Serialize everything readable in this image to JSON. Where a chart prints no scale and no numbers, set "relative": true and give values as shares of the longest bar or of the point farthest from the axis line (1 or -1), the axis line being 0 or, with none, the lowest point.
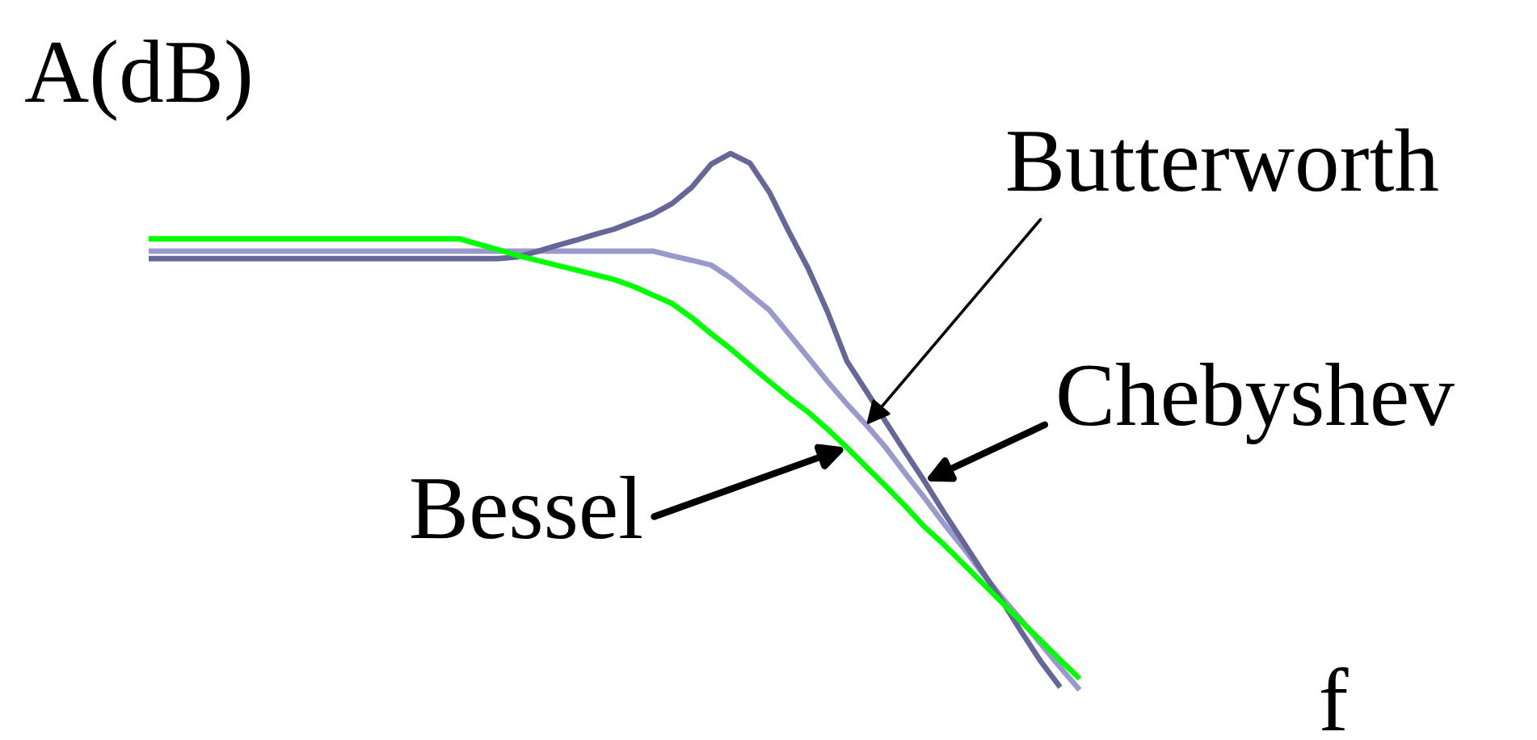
{
  "chart_data": {
    "type": "line",
    "relative": true,
    "xlabel": "f",
    "ylabel": "A(dB)",
    "categories": [
      null,
      null,
      null,
      null,
      null,
      null,
      null,
      null,
      null,
      null,
      null,
      null,
      null,
      null,
      null,
      null,
      null,
      null,
      null,
      null,
      null,
      null,
      null,
      null,
      null,
      null,
      null,
      null,
      null,
      null,
      null,
      null,
      null,
      null,
      null,
      null,
      null,
      null,
      null,
      null,
      null,
      null,
      null,
      null,
      null,
      null,
      null,
      null,
      null
    ],
    "series": [
      {
        "name": "Butterworth",
        "color": "#9999cc",
        "values": [
          0.818,
          0.818,
          0.818,
          0.818,
          0.818,
          0.818,
          0.818,
          0.818,
          0.818,
          0.818,
          0.818,
          0.818,
          0.818,
          0.818,
          0.818,
          0.818,
          0.818,
          0.818,
          0.818,
          0.818,
          0.818,
          0.818,
          0.818,
          0.818,
          0.818,
          0.818,
          0.818,
          0.809,
          0.801,
          0.792,
          0.768,
          0.738,
          0.708,
          0.664,
          0.62,
          0.575,
          0.533,
          0.494,
          0.452,
          0.404,
          0.358,
          0.31,
          0.265,
          0.217,
          0.172,
          0.13,
          0.086,
          0.042,
          0.0
        ]
      },
      {
        "name": "Chebyshev",
        "color": "#666699",
        "values": [
          0.804,
          0.804,
          0.804,
          0.804,
          0.804,
          0.804,
          0.804,
          0.804,
          0.804,
          0.804,
          0.804,
          0.804,
          0.804,
          0.804,
          0.804,
          0.804,
          0.804,
          0.804,
          0.804,
          0.807,
          0.817,
          0.828,
          0.838,
          0.849,
          0.859,
          0.873,
          0.887,
          0.907,
          0.937,
          0.98,
          1.0,
          0.982,
          0.928,
          0.855,
          0.786,
          0.705,
          0.613,
          0.557,
          0.5,
          0.444,
          0.389,
          0.331,
          0.276,
          0.22,
          0.166,
          0.108,
          0.053,
          0.005,
          null
        ]
      },
      {
        "name": "Bessel",
        "color": "#00ff00",
        "values": [
          0.841,
          0.841,
          0.841,
          0.841,
          0.841,
          0.841,
          0.841,
          0.841,
          0.841,
          0.841,
          0.841,
          0.841,
          0.841,
          0.841,
          0.841,
          0.841,
          0.841,
          0.831,
          0.821,
          0.81,
          0.801,
          0.792,
          0.783,
          0.774,
          0.765,
          0.752,
          0.736,
          0.72,
          0.694,
          0.664,
          0.636,
          0.605,
          0.575,
          0.545,
          0.518,
          0.486,
          0.452,
          0.416,
          0.38,
          0.343,
          0.304,
          0.271,
          0.235,
          0.199,
          0.163,
          0.127,
          0.092,
          0.056,
          0.021
        ]
      }
    ]
  }
}
